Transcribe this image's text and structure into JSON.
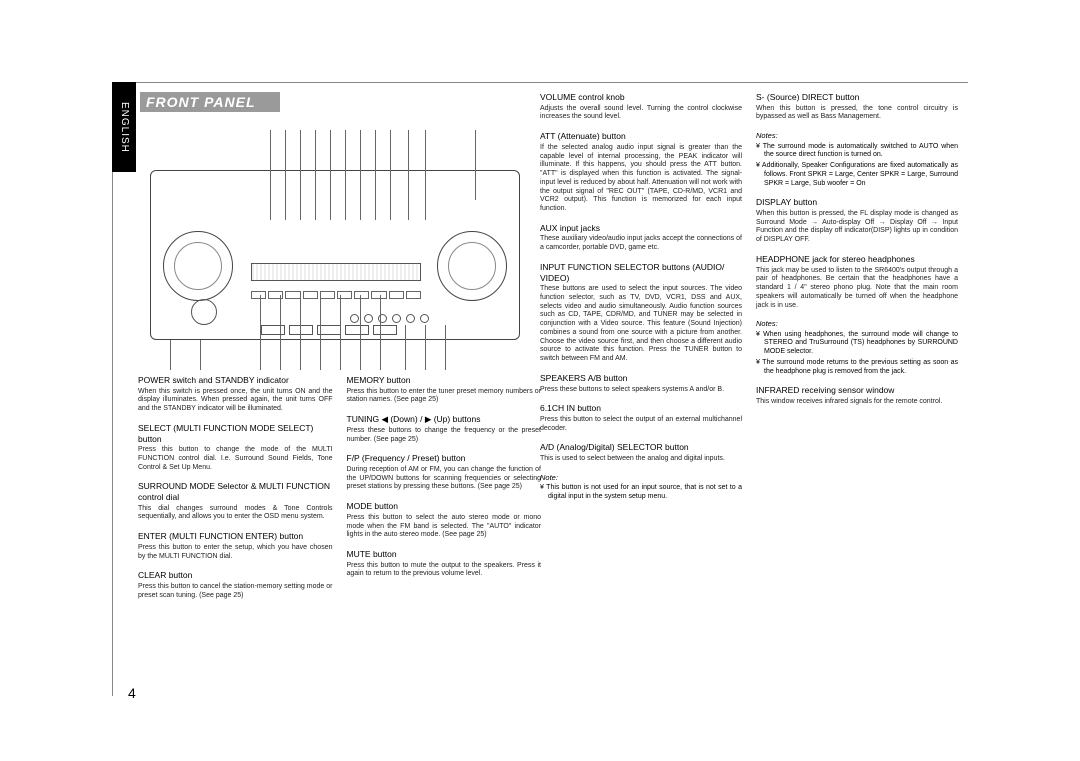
{
  "vtab": "ENGLISH",
  "title": "FRONT PANEL",
  "page_num": "4",
  "col1": [
    {
      "h": "POWER switch and STANDBY indicator",
      "p": "When this switch is pressed once, the unit turns ON and the display illuminates. When pressed again, the unit turns OFF and the STANDBY indicator will be illuminated."
    },
    {
      "h": "SELECT (MULTI FUNCTION MODE SELECT) button",
      "p": "Press this button to change the mode of the MULTI FUNCTION control dial. I.e. Surround Sound Fields, Tone Control & Set Up Menu."
    },
    {
      "h": "SURROUND MODE Selector & MULTI FUNCTION control dial",
      "p": "This dial changes surround modes & Tone Controls sequentially, and allows you to enter the OSD menu system."
    },
    {
      "h": "ENTER (MULTI FUNCTION ENTER) button",
      "p": "Press this button to enter the setup, which you have chosen by the MULTI FUNCTION dial."
    },
    {
      "h": "CLEAR button",
      "p": "Press this button to cancel the station-memory setting mode or preset scan tuning. (See page 25)"
    }
  ],
  "col2": [
    {
      "h": "MEMORY button",
      "p": "Press this button to enter the tuner preset memory numbers or station names. (See page 25)"
    },
    {
      "h": "TUNING ◀ (Down) / ▶ (Up) buttons",
      "p": "Press these buttons to change the frequency or the preset number. (See page 25)"
    },
    {
      "h": "F/P (Frequency / Preset) button",
      "p": "During reception of AM or FM, you can change the function of the UP/DOWN buttons for scanning frequencies or selecting preset stations by pressing these buttons. (See page 25)"
    },
    {
      "h": "MODE button",
      "p": "Press this button to select the auto stereo mode or mono mode when the FM band is selected. The \"AUTO\" indicator lights in the auto stereo mode. (See page 25)"
    },
    {
      "h": "MUTE button",
      "p": "Press this button to mute the output to the speakers. Press it again to return to the previous volume level."
    }
  ],
  "col3": [
    {
      "h": "VOLUME control knob",
      "p": "Adjusts the overall sound level. Turning the control clockwise increases the sound level."
    },
    {
      "h": "ATT (Attenuate) button",
      "p": "If the selected analog audio input signal is greater than the capable level of internal processing, the PEAK indicator will illuminate. If this happens, you should press the ATT button. \"ATT\" is displayed when this function is activated. The signal-input level is reduced by about half. Attenuation will not work with the output signal of \"REC OUT\" (TAPE, CD-R/MD, VCR1 and VCR2 output). This function is memorized for each input function."
    },
    {
      "h": "AUX input jacks",
      "p": "These auxiliary video/audio input jacks accept the connections of a camcorder, portable DVD, game etc."
    },
    {
      "h": "INPUT FUNCTION SELECTOR buttons (AUDIO/ VIDEO)",
      "p": "These buttons are used to select the input sources. The video function selector, such as TV, DVD, VCR1, DSS and AUX, selects video and audio simultaneously. Audio function sources such as CD, TAPE, CDR/MD, and TUNER may be selected in conjunction with a Video source. This feature (Sound Injection) combines a sound from one source with a picture from another. Choose the video source first, and then choose a different audio source to activate this function. Press the TUNER button to switch between FM and AM."
    },
    {
      "h": "SPEAKERS A/B button",
      "p": "Press these buttons to select speakers systems A and/or B."
    },
    {
      "h": "6.1CH IN button",
      "p": "Press this button to select the output of an external multichannel decoder."
    },
    {
      "h": "A/D (Analog/Digital) SELECTOR button",
      "p": "This is used to select between the analog and digital inputs."
    }
  ],
  "col3_note": {
    "label": "Note:",
    "bullet": "¥ This button is not used for an input source, that is not set to a digital input in the system setup menu."
  },
  "col4": [
    {
      "h": "S- (Source) DIRECT button",
      "p": "When this button is pressed, the tone control circuitry is bypassed as well as Bass Management."
    }
  ],
  "col4_notes1": {
    "label": "Notes:",
    "bullets": [
      "¥ The surround mode is automatically switched to AUTO when the source direct function is turned on.",
      "¥ Additionally, Speaker Configurations are fixed automatically as follows. Front SPKR = Large, Center SPKR = Large, Surround SPKR = Large, Sub woofer = On"
    ]
  },
  "col4b": [
    {
      "h": "DISPLAY button",
      "p": "When this button is pressed, the FL display mode is changed as Surround Mode → Auto-display Off → Display Off → Input Function and the display off indicator(DISP) lights up in condition of DISPLAY OFF."
    },
    {
      "h": "HEADPHONE jack for stereo headphones",
      "p": "This jack may be used to listen to the SR6400's output through a pair of headphones. Be certain that the headphones have a standard 1 / 4\" stereo phono plug. Note that the main room speakers will automatically be turned off when the headphone jack is in use."
    }
  ],
  "col4_notes2": {
    "label": "Notes:",
    "bullets": [
      "¥ When using headphones, the surround mode will change to STEREO and TruSurround (TS) headphones by SURROUND MODE selector.",
      "¥ The surround mode returns to the previous setting as soon as the headphone plug is removed from the jack."
    ]
  },
  "col4c": [
    {
      "h": "INFRARED receiving sensor window",
      "p": "This window receives infrared signals for the remote control."
    }
  ]
}
